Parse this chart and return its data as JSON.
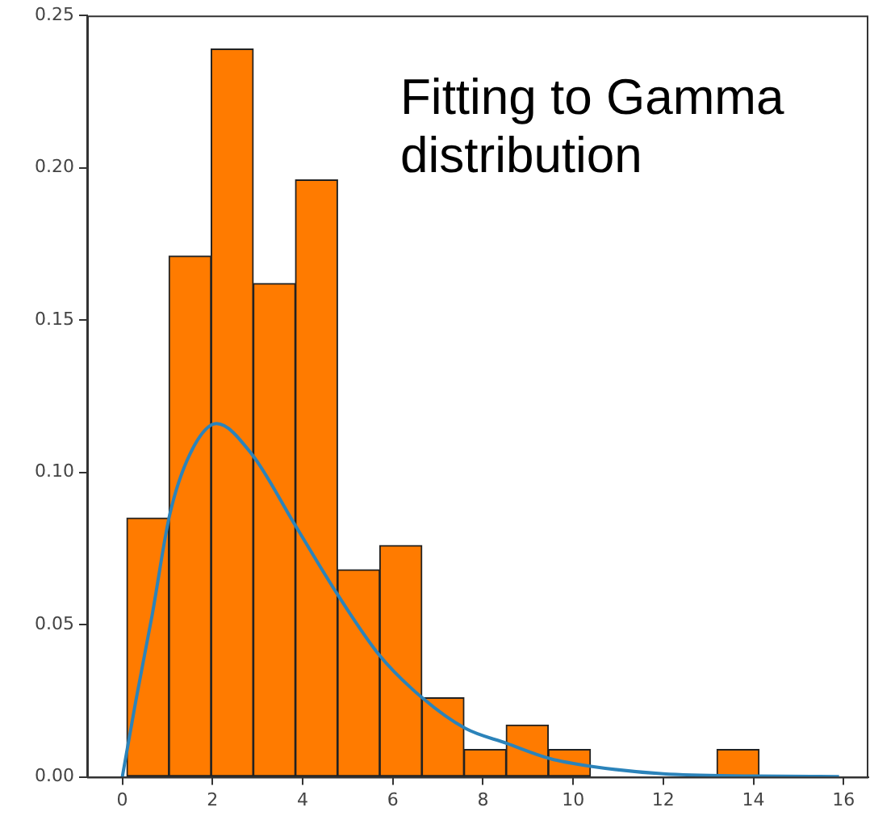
{
  "chart_data": {
    "type": "histogram",
    "annotations": [
      "Fitting to Gamma distribution"
    ],
    "xlim": [
      -0.78,
      16.55
    ],
    "xticks": [
      0,
      2,
      4,
      6,
      8,
      10,
      12,
      14,
      16
    ],
    "ylim": [
      0,
      0.25
    ],
    "yticks": [
      {
        "value": 0,
        "label": "0.00"
      },
      {
        "value": 0.05,
        "label": "0.05"
      },
      {
        "value": 0.1,
        "label": "0.10"
      },
      {
        "value": 0.15,
        "label": "0.15"
      },
      {
        "value": 0.2,
        "label": "0.20"
      },
      {
        "value": 0.25,
        "label": "0.25"
      }
    ],
    "grid": false,
    "legend": false,
    "series": [
      {
        "type": "histogram",
        "color": "#ff7b00",
        "bins": [
          0.1,
          1.035,
          1.97,
          2.905,
          3.84,
          4.775,
          5.71,
          6.645,
          7.58,
          8.515,
          9.45,
          10.385,
          11.32,
          12.255,
          13.19,
          14.125
        ],
        "values": [
          0.085,
          0.171,
          0.239,
          0.162,
          0.196,
          0.068,
          0.076,
          0.026,
          0.009,
          0.017,
          0.009,
          0,
          0,
          0,
          0.009
        ]
      },
      {
        "type": "line",
        "color": "#2b83ba",
        "x": [
          0,
          0.3,
          0.66,
          1.05,
          1.5,
          2.09,
          2.87,
          3.82,
          4.77,
          5.7,
          6.65,
          7.6,
          8.53,
          9.49,
          10.39,
          12,
          14,
          15.9
        ],
        "values": [
          0,
          0.025,
          0.053,
          0.086,
          0.106,
          0.116,
          0.106,
          0.083,
          0.06,
          0.04,
          0.026,
          0.016,
          0.011,
          0.006,
          0.0035,
          0.001,
          0.0003,
          0.0001
        ]
      }
    ]
  }
}
